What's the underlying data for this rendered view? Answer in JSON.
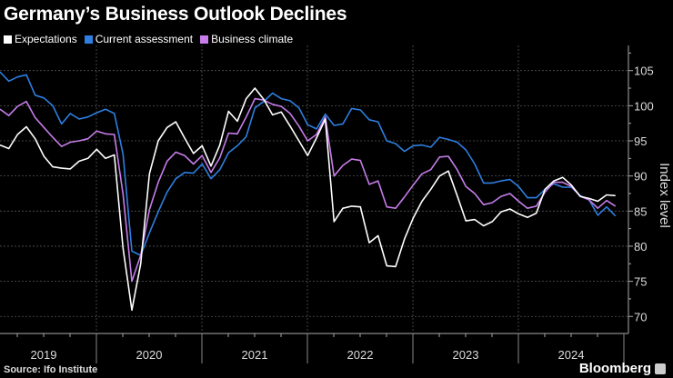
{
  "chart_data": {
    "type": "line",
    "title": "Germany’s Business Outlook Declines",
    "ylabel": "Index level",
    "xlabel": "",
    "x_start": "2019-01",
    "x_end": "2024-11",
    "x_frequency": "monthly",
    "x_tick_labels": [
      "2019",
      "2020",
      "2021",
      "2022",
      "2023",
      "2024"
    ],
    "y_ticks": [
      70,
      75,
      80,
      85,
      90,
      95,
      100,
      105
    ],
    "ylim": [
      67.6,
      108.6
    ],
    "y_axis_side": "right",
    "grid": true,
    "legend_position": "top-left",
    "series": [
      {
        "name": "Expectations",
        "color": "#ffffff",
        "values": [
          94.4,
          93.9,
          95.9,
          97.0,
          95.3,
          92.8,
          91.3,
          91.1,
          91.0,
          92.1,
          92.5,
          93.8,
          92.5,
          93.0,
          79.7,
          70.9,
          77.5,
          90.3,
          95.0,
          96.9,
          97.7,
          95.4,
          93.2,
          94.3,
          91.4,
          94.4,
          99.2,
          97.8,
          101.0,
          102.5,
          100.9,
          98.7,
          99.1,
          97.1,
          95.0,
          92.9,
          95.4,
          98.1,
          83.5,
          85.4,
          85.7,
          85.6,
          80.5,
          81.5,
          77.2,
          77.1,
          81.0,
          84.0,
          86.4,
          88.1,
          90.0,
          90.7,
          87.2,
          83.6,
          83.8,
          82.9,
          83.5,
          84.9,
          85.3,
          84.6,
          84.1,
          84.7,
          88.1,
          89.3,
          89.8,
          88.7,
          87.1,
          86.8,
          86.4,
          87.3,
          87.2
        ]
      },
      {
        "name": "Current assessment",
        "color": "#2d7fe0",
        "values": [
          104.8,
          103.5,
          104.1,
          104.4,
          101.5,
          101.1,
          100.0,
          97.4,
          98.9,
          98.1,
          98.4,
          99.0,
          99.5,
          98.9,
          93.1,
          79.3,
          78.7,
          81.9,
          84.9,
          87.7,
          89.6,
          90.5,
          90.4,
          91.7,
          89.6,
          90.9,
          93.3,
          94.3,
          95.6,
          99.7,
          100.6,
          101.8,
          101.0,
          100.7,
          99.7,
          97.3,
          96.7,
          98.8,
          97.2,
          97.4,
          99.6,
          99.4,
          98.0,
          97.7,
          95.0,
          94.6,
          93.5,
          94.3,
          94.4,
          94.1,
          95.5,
          95.2,
          94.8,
          93.7,
          91.7,
          89.0,
          89.0,
          89.3,
          89.5,
          88.5,
          86.9,
          86.9,
          88.1,
          88.9,
          88.4,
          88.4,
          87.2,
          86.6,
          84.4,
          85.6,
          84.3
        ]
      },
      {
        "name": "Business climate",
        "color": "#c77dea",
        "values": [
          99.5,
          98.6,
          99.9,
          100.6,
          98.3,
          96.9,
          95.5,
          94.2,
          94.8,
          95.0,
          95.3,
          96.4,
          96.0,
          95.9,
          87.4,
          75.0,
          78.7,
          85.2,
          89.1,
          92.1,
          93.4,
          92.9,
          91.7,
          92.9,
          90.5,
          92.6,
          96.1,
          96.0,
          98.4,
          101.0,
          100.8,
          100.2,
          99.9,
          98.9,
          97.1,
          95.0,
          95.9,
          98.4,
          90.0,
          91.5,
          92.4,
          92.2,
          88.8,
          89.3,
          85.6,
          85.4,
          87.0,
          88.7,
          90.3,
          90.9,
          92.7,
          92.8,
          90.9,
          88.5,
          87.5,
          85.9,
          86.2,
          87.1,
          87.5,
          86.4,
          85.4,
          85.7,
          87.7,
          89.1,
          89.1,
          88.5,
          87.1,
          86.6,
          85.4,
          86.5,
          85.7
        ]
      }
    ]
  },
  "footer": {
    "source": "Source: Ifo Institute",
    "brand": "Bloomberg"
  }
}
